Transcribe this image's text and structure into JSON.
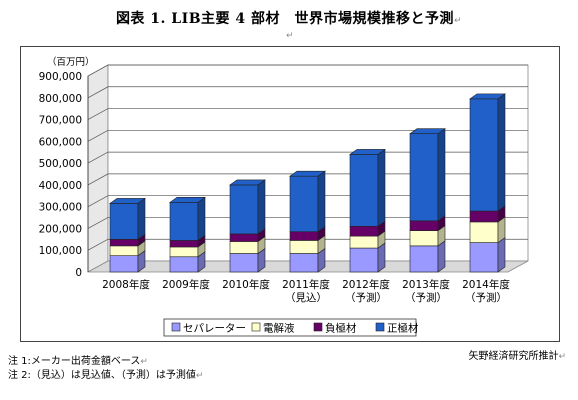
{
  "title": "図表 1. LIB主要 4 部材　世界市場規模推移と予測",
  "return_mark": "↵",
  "source_label": "矢野経済研究所推計",
  "footnotes": [
    "注 1:メーカー出荷金額ベース",
    "注 2:（見込）は見込値、（予測）は予測値"
  ],
  "chart_data": {
    "type": "bar",
    "stacked": true,
    "unit_label": "（百万円）",
    "categories": [
      [
        "2008年度"
      ],
      [
        "2009年度"
      ],
      [
        "2010年度"
      ],
      [
        "2011年度",
        "（見込）"
      ],
      [
        "2012年度",
        "（予測）"
      ],
      [
        "2013年度",
        "（予測）"
      ],
      [
        "2014年度",
        "（予測）"
      ]
    ],
    "ylim": [
      0,
      900000
    ],
    "yticks": [
      0,
      100000,
      200000,
      300000,
      400000,
      500000,
      600000,
      700000,
      800000,
      900000
    ],
    "ytick_labels": [
      "0",
      "100,000",
      "200,000",
      "300,000",
      "400,000",
      "500,000",
      "600,000",
      "700,000",
      "800,000",
      "900,000"
    ],
    "grid": true,
    "legend_position": "bottom",
    "series": [
      {
        "name": "セパレーター",
        "color": "#9999ff",
        "values": [
          75000,
          70000,
          85000,
          85000,
          110000,
          120000,
          135000
        ]
      },
      {
        "name": "電解液",
        "color": "#ffffcc",
        "values": [
          45000,
          45000,
          55000,
          60000,
          55000,
          70000,
          95000
        ]
      },
      {
        "name": "負極材",
        "color": "#660066",
        "values": [
          30000,
          30000,
          35000,
          40000,
          45000,
          45000,
          50000
        ]
      },
      {
        "name": "正極材",
        "color": "#2060c8",
        "values": [
          165000,
          175000,
          225000,
          255000,
          330000,
          400000,
          515000
        ]
      }
    ]
  }
}
